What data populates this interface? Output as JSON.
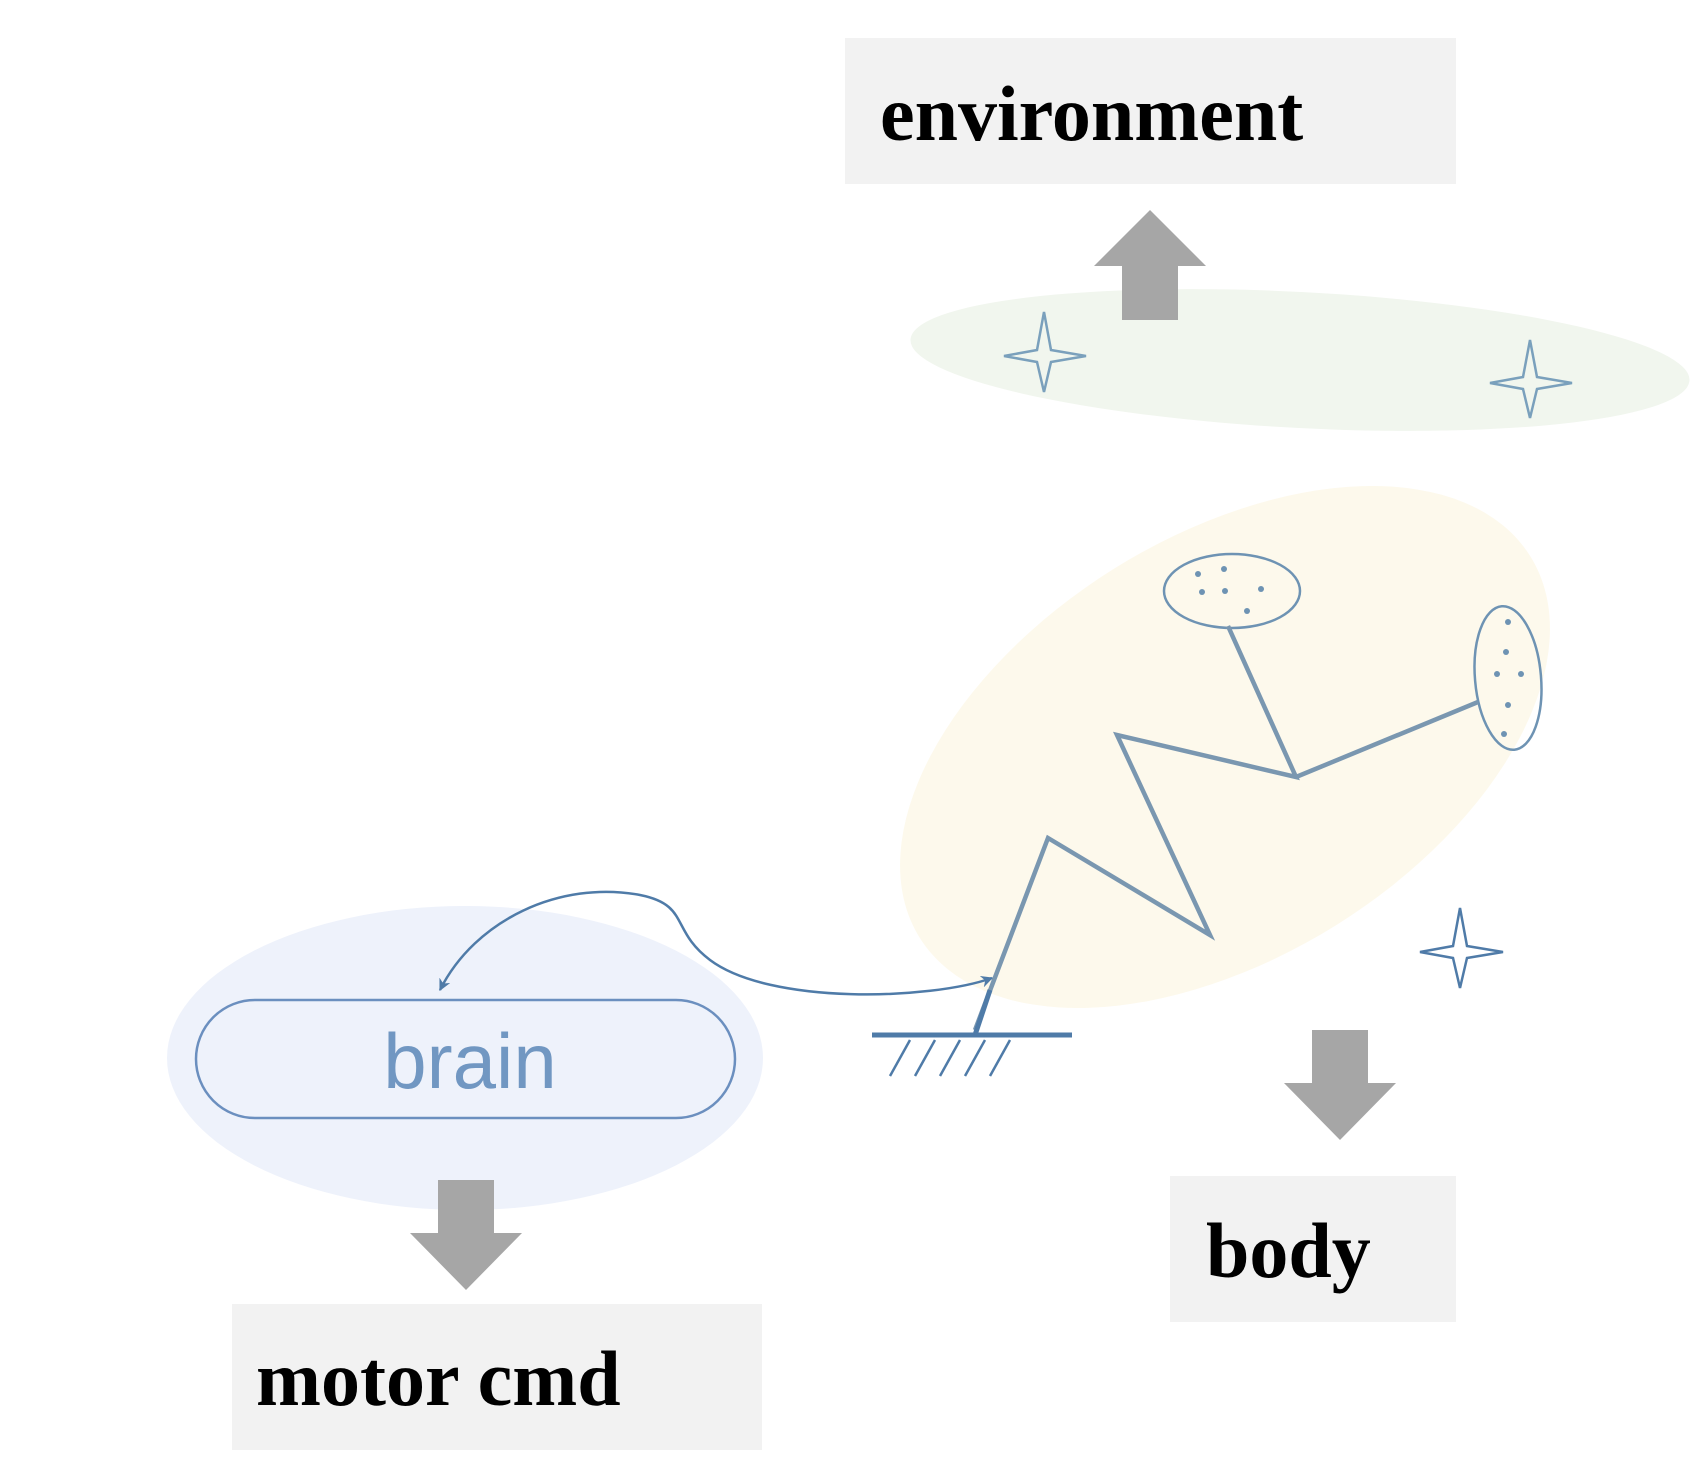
{
  "labels": {
    "environment": "environment",
    "body": "body",
    "motor_cmd": "motor cmd",
    "brain": "brain"
  },
  "colors": {
    "label_bg": "#f2f2f2",
    "label_text": "#000000",
    "arrow_fill": "#a6a6a6",
    "environment_region": "#f1f6ee",
    "body_region": "#fdf9ec",
    "brain_region": "#eef2fb",
    "brain_outline": "#6b8fbf",
    "brain_text": "#7197c2",
    "mechanism_stroke": "#6e93b3",
    "spring_stroke": "#7a97b0",
    "star_stroke": "#7aa0bc",
    "feedback_arrow": "#4f7ba8"
  },
  "icons": {
    "environment_markers": "four-point-star-icon",
    "body_marker": "four-point-star-icon",
    "ground": "ground-hatch-icon",
    "sensors": "sensor-pad-icon"
  }
}
